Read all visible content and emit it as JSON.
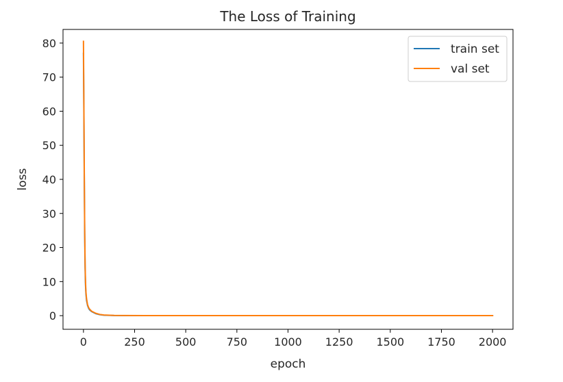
{
  "chart_data": {
    "type": "line",
    "title": "The Loss of Training",
    "xlabel": "epoch",
    "ylabel": "loss",
    "xlim": [
      -100,
      2100
    ],
    "ylim": [
      -4,
      84
    ],
    "xticks": [
      0,
      250,
      500,
      750,
      1000,
      1250,
      1500,
      1750,
      2000
    ],
    "xtick_labels": [
      "0",
      "250",
      "500",
      "750",
      "1000",
      "1250",
      "1500",
      "1750",
      "2000"
    ],
    "yticks": [
      0,
      10,
      20,
      30,
      40,
      50,
      60,
      70,
      80
    ],
    "ytick_labels": [
      "0",
      "10",
      "20",
      "30",
      "40",
      "50",
      "60",
      "70",
      "80"
    ],
    "grid": false,
    "legend_position": "top-right",
    "series": [
      {
        "name": "train set",
        "color": "#1f77b4",
        "x": [
          0,
          2,
          4,
          6,
          8,
          10,
          12,
          15,
          20,
          25,
          30,
          40,
          50,
          60,
          80,
          100,
          150,
          200,
          300,
          500,
          750,
          1000,
          1250,
          1500,
          1750,
          2000
        ],
        "y": [
          77,
          60,
          40,
          24,
          14,
          9,
          6.5,
          4.5,
          3,
          2.2,
          1.7,
          1.2,
          0.9,
          0.6,
          0.3,
          0.15,
          0.05,
          0.03,
          0.02,
          0.01,
          0.01,
          0.01,
          0.01,
          0.01,
          0.01,
          0.01
        ]
      },
      {
        "name": "val set",
        "color": "#ff7f0e",
        "x": [
          0,
          2,
          4,
          6,
          8,
          10,
          12,
          15,
          20,
          25,
          30,
          40,
          50,
          60,
          80,
          100,
          150,
          200,
          300,
          500,
          750,
          1000,
          1250,
          1500,
          1750,
          2000
        ],
        "y": [
          80.5,
          62,
          42,
          25,
          15,
          10,
          7,
          5,
          3.2,
          2.4,
          1.9,
          1.3,
          1,
          0.7,
          0.35,
          0.2,
          0.08,
          0.05,
          0.03,
          0.02,
          0.02,
          0.02,
          0.02,
          0.02,
          0.02,
          0.02
        ]
      }
    ]
  }
}
